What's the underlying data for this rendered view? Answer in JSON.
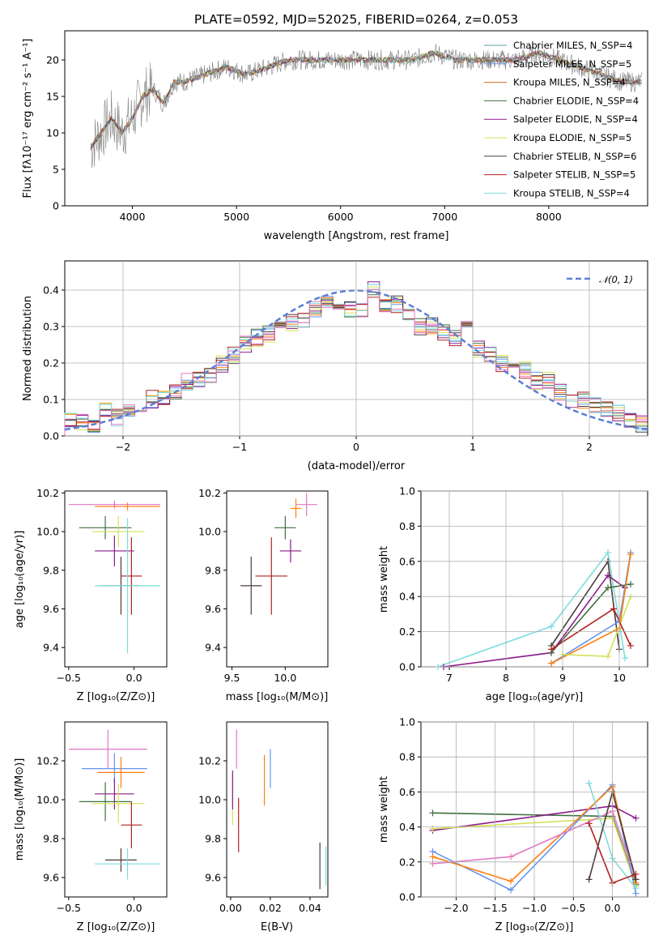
{
  "title": "PLATE=0592, MJD=52025, FIBERID=0264, z=0.053",
  "panels": {
    "spectrum": {
      "xlabel": "wavelength [Angstrom, rest frame]",
      "ylabel": "Flux [fλ10⁻¹⁷ erg cm⁻² s⁻¹ A⁻¹]",
      "xticks": [
        "4000",
        "5000",
        "6000",
        "7000",
        "8000"
      ],
      "yticks": [
        "0",
        "5",
        "10",
        "15",
        "20"
      ]
    },
    "residuals": {
      "xlabel": "(data-model)/error",
      "ylabel": "Normed distribution",
      "xticks": [
        "−2",
        "−1",
        "0",
        "1",
        "2"
      ],
      "yticks": [
        "0.0",
        "0.1",
        "0.2",
        "0.3",
        "0.4"
      ],
      "legend": "𝒩(0, 1)"
    },
    "age_Z": {
      "xlabel": "Z [log₁₀(Z/Z⊙)]",
      "ylabel": "age  [log₁₀(age/yr)]",
      "xticks": [
        "−0.5",
        "0.0"
      ],
      "yticks": [
        "9.4",
        "9.6",
        "9.8",
        "10.0",
        "10.2"
      ]
    },
    "age_mass": {
      "xlabel": "mass [log₁₀(M/M⊙)]",
      "xticks": [
        "9.5",
        "10.0"
      ],
      "yticks": [
        "9.4",
        "9.6",
        "9.8",
        "10.0",
        "10.2"
      ]
    },
    "mw_age": {
      "xlabel": "age  [log₁₀(age/yr)]",
      "ylabel": "mass weight",
      "xticks": [
        "7",
        "8",
        "9",
        "10"
      ],
      "yticks": [
        "0.0",
        "0.2",
        "0.4",
        "0.6",
        "0.8",
        "1.0"
      ]
    },
    "mass_Z": {
      "xlabel": "Z [log₁₀(Z/Z⊙)]",
      "ylabel": "mass [log₁₀(M/M⊙)]",
      "xticks": [
        "−0.5",
        "0.0"
      ],
      "yticks": [
        "9.6",
        "9.8",
        "10.0",
        "10.2"
      ]
    },
    "mass_EBV": {
      "xlabel": "E(B-V)",
      "xticks": [
        "0.00",
        "0.02",
        "0.04"
      ],
      "yticks": [
        "9.6",
        "9.8",
        "10.0",
        "10.2"
      ]
    },
    "mw_Z": {
      "xlabel": "Z [log₁₀(Z/Z⊙)]",
      "ylabel": "mass weight",
      "xticks": [
        "−2.0",
        "−1.5",
        "−1.0",
        "−0.5",
        "0.0"
      ],
      "yticks": [
        "0.0",
        "0.2",
        "0.4",
        "0.6",
        "0.8",
        "1.0"
      ]
    }
  },
  "chart_data": [
    {
      "type": "line",
      "title": "PLATE=0592, MJD=52025, FIBERID=0264, z=0.053",
      "xlabel": "wavelength [Angstrom, rest frame]",
      "ylabel": "Flux [fλ10⁻¹⁷ erg cm⁻² s⁻¹ A⁻¹]",
      "xlim": [
        3350,
        8950
      ],
      "ylim": [
        0,
        24
      ],
      "legend_position": "upper right",
      "data_spectrum": {
        "name": "data",
        "x": [
          3600,
          3700,
          3800,
          3900,
          4000,
          4100,
          4200,
          4300,
          4400,
          4500,
          4700,
          4900,
          5100,
          5300,
          5500,
          5700,
          5900,
          6100,
          6300,
          6500,
          6700,
          6900,
          7100,
          7300,
          7500,
          7700,
          7900,
          8100,
          8300,
          8500,
          8700,
          8900
        ],
        "y": [
          8,
          10,
          12,
          10,
          12,
          15,
          16,
          14,
          17,
          17,
          18,
          19,
          18,
          19,
          20,
          20,
          20,
          20,
          20,
          20,
          20,
          21,
          20,
          20,
          20,
          20,
          21,
          20,
          19,
          18,
          17,
          17
        ]
      },
      "series": [
        {
          "name": "Chabrier MILES, N_SSP=4",
          "color": "#5f9ea0"
        },
        {
          "name": "Salpeter MILES, N_SSP=5",
          "color": "#6495ed"
        },
        {
          "name": "Kroupa MILES, N_SSP=4",
          "color": "#d2691e"
        },
        {
          "name": "Chabrier ELODIE, N_SSP=4",
          "color": "#3f6f3f"
        },
        {
          "name": "Salpeter ELODIE, N_SSP=4",
          "color": "#8b1a8b"
        },
        {
          "name": "Kroupa ELODIE, N_SSP=5",
          "color": "#d4e157"
        },
        {
          "name": "Chabrier STELIB, N_SSP=6",
          "color": "#4a3b3b"
        },
        {
          "name": "Salpeter STELIB, N_SSP=5",
          "color": "#b22222"
        },
        {
          "name": "Kroupa STELIB, N_SSP=4",
          "color": "#7fdcdc"
        }
      ]
    },
    {
      "type": "line",
      "xlabel": "(data-model)/error",
      "ylabel": "Normed distribution",
      "xlim": [
        -2.5,
        2.5
      ],
      "ylim": [
        0,
        0.48
      ],
      "grid": true,
      "legend_position": "upper right",
      "gaussian": {
        "name": "𝒩(0, 1)",
        "mean": 0,
        "sigma": 1,
        "color": "#5b7fd6"
      },
      "histogram_bins": [
        -2.5,
        -2.4,
        -2.3,
        -2.2,
        -2.1,
        -2.0,
        -1.9,
        -1.8,
        -1.7,
        -1.6,
        -1.5,
        -1.4,
        -1.3,
        -1.2,
        -1.1,
        -1.0,
        -0.9,
        -0.8,
        -0.7,
        -0.6,
        -0.5,
        -0.4,
        -0.3,
        -0.2,
        -0.1,
        0.0,
        0.1,
        0.2,
        0.3,
        0.4,
        0.5,
        0.6,
        0.7,
        0.8,
        0.9,
        1.0,
        1.1,
        1.2,
        1.3,
        1.4,
        1.5,
        1.6,
        1.7,
        1.8,
        1.9,
        2.0,
        2.1,
        2.2,
        2.3,
        2.4,
        2.5
      ],
      "histogram_values": [
        0.04,
        0.035,
        0.03,
        0.07,
        0.05,
        0.06,
        0.08,
        0.1,
        0.1,
        0.12,
        0.15,
        0.16,
        0.17,
        0.2,
        0.22,
        0.25,
        0.27,
        0.28,
        0.3,
        0.31,
        0.32,
        0.35,
        0.37,
        0.36,
        0.35,
        0.34,
        0.4,
        0.35,
        0.36,
        0.34,
        0.3,
        0.3,
        0.28,
        0.27,
        0.3,
        0.24,
        0.22,
        0.2,
        0.2,
        0.18,
        0.15,
        0.15,
        0.12,
        0.1,
        0.1,
        0.08,
        0.07,
        0.06,
        0.04,
        0.03
      ]
    },
    {
      "type": "scatter",
      "xlabel": "Z [log₁₀(Z/Z⊙)]",
      "ylabel": "age  [log₁₀(age/yr)]",
      "xlim": [
        -0.53,
        0.25
      ],
      "ylim": [
        9.3,
        10.21
      ],
      "points": [
        {
          "x": -0.15,
          "xerr": 0.35,
          "y": 10.14,
          "yerr": 0.02,
          "color": "#e377c2"
        },
        {
          "x": -0.05,
          "xerr": 0.25,
          "y": 10.13,
          "yerr": 0.02,
          "color": "#ff7f0e"
        },
        {
          "x": -0.22,
          "xerr": 0.2,
          "y": 10.02,
          "yerr": 0.06,
          "color": "#3f6f3f"
        },
        {
          "x": -0.12,
          "xerr": 0.2,
          "y": 10.0,
          "yerr": 0.08,
          "color": "#d4e157"
        },
        {
          "x": -0.15,
          "xerr": 0.15,
          "y": 9.9,
          "yerr": 0.08,
          "color": "#8b1a8b"
        },
        {
          "x": -0.02,
          "xerr": 0.08,
          "y": 9.77,
          "yerr": 0.2,
          "color": "#b22222"
        },
        {
          "x": -0.1,
          "xerr": 0.15,
          "y": 9.72,
          "yerr": 0.15,
          "color": "#4a3b3b"
        },
        {
          "x": -0.05,
          "xerr": 0.25,
          "y": 9.72,
          "yerr": 0.35,
          "color": "#7fdcdc"
        }
      ]
    },
    {
      "type": "scatter",
      "xlabel": "mass [log₁₀(M/M⊙)]",
      "xlim": [
        9.45,
        10.4
      ],
      "ylim": [
        9.3,
        10.21
      ],
      "points": [
        {
          "x": 10.2,
          "xerr": 0.1,
          "y": 10.14,
          "yerr": 0.06,
          "color": "#e377c2"
        },
        {
          "x": 10.1,
          "xerr": 0.05,
          "y": 10.12,
          "yerr": 0.05,
          "color": "#ff7f0e"
        },
        {
          "x": 10.0,
          "xerr": 0.1,
          "y": 10.02,
          "yerr": 0.06,
          "color": "#3f6f3f"
        },
        {
          "x": 10.05,
          "xerr": 0.1,
          "y": 9.9,
          "yerr": 0.06,
          "color": "#8b1a8b"
        },
        {
          "x": 9.87,
          "xerr": 0.15,
          "y": 9.77,
          "yerr": 0.2,
          "color": "#b22222"
        },
        {
          "x": 9.68,
          "xerr": 0.1,
          "y": 9.72,
          "yerr": 0.15,
          "color": "#4a3b3b"
        }
      ]
    },
    {
      "type": "line",
      "xlabel": "age  [log₁₀(age/yr)]",
      "ylabel": "mass weight",
      "xlim": [
        6.5,
        10.5
      ],
      "ylim": [
        0,
        1
      ],
      "grid": true,
      "series": [
        {
          "color": "#7fdcdc",
          "x": [
            6.8,
            8.8,
            9.8,
            10.1
          ],
          "y": [
            0.0,
            0.23,
            0.65,
            0.05
          ]
        },
        {
          "color": "#8b1a8b",
          "x": [
            6.9,
            8.8,
            9.8,
            10.1
          ],
          "y": [
            0.0,
            0.08,
            0.52,
            0.45
          ]
        },
        {
          "color": "#4a3b3b",
          "x": [
            8.8,
            9.8,
            10.0
          ],
          "y": [
            0.12,
            0.6,
            0.1
          ]
        },
        {
          "color": "#3f6f3f",
          "x": [
            8.8,
            9.8,
            10.2
          ],
          "y": [
            0.08,
            0.45,
            0.47
          ]
        },
        {
          "color": "#6495ed",
          "x": [
            8.8,
            10.0,
            10.2
          ],
          "y": [
            0.02,
            0.26,
            0.65
          ]
        },
        {
          "color": "#ff7f0e",
          "x": [
            8.8,
            10.0,
            10.2
          ],
          "y": [
            0.02,
            0.22,
            0.64
          ]
        },
        {
          "color": "#d4e157",
          "x": [
            9.0,
            9.8,
            10.2
          ],
          "y": [
            0.07,
            0.06,
            0.4
          ]
        },
        {
          "color": "#b22222",
          "x": [
            8.8,
            9.9,
            10.2
          ],
          "y": [
            0.1,
            0.33,
            0.12
          ]
        }
      ]
    },
    {
      "type": "scatter",
      "xlabel": "Z [log₁₀(Z/Z⊙)]",
      "ylabel": "mass [log₁₀(M/M⊙)]",
      "xlim": [
        -0.53,
        0.25
      ],
      "ylim": [
        9.5,
        10.4
      ],
      "points": [
        {
          "x": -0.2,
          "xerr": 0.3,
          "y": 10.26,
          "yerr": 0.1,
          "color": "#e377c2"
        },
        {
          "x": -0.15,
          "xerr": 0.25,
          "y": 10.16,
          "yerr": 0.08,
          "color": "#6495ed"
        },
        {
          "x": -0.1,
          "xerr": 0.18,
          "y": 10.14,
          "yerr": 0.08,
          "color": "#ff7f0e"
        },
        {
          "x": -0.15,
          "xerr": 0.15,
          "y": 10.03,
          "yerr": 0.08,
          "color": "#8b1a8b"
        },
        {
          "x": -0.22,
          "xerr": 0.2,
          "y": 9.99,
          "yerr": 0.1,
          "color": "#3f6f3f"
        },
        {
          "x": -0.12,
          "xerr": 0.2,
          "y": 9.98,
          "yerr": 0.1,
          "color": "#d4e157"
        },
        {
          "x": -0.02,
          "xerr": 0.08,
          "y": 9.87,
          "yerr": 0.12,
          "color": "#b22222"
        },
        {
          "x": -0.1,
          "xerr": 0.12,
          "y": 9.69,
          "yerr": 0.06,
          "color": "#4a3b3b"
        },
        {
          "x": -0.05,
          "xerr": 0.25,
          "y": 9.67,
          "yerr": 0.08,
          "color": "#7fdcdc"
        }
      ]
    },
    {
      "type": "scatter",
      "xlabel": "E(B-V)",
      "xlim": [
        -0.002,
        0.049
      ],
      "ylim": [
        9.5,
        10.4
      ],
      "points": [
        {
          "x": 0.001,
          "y": 10.0,
          "yerr": 0.13,
          "color": "#d4e157"
        },
        {
          "x": 0.001,
          "y": 10.05,
          "yerr": 0.1,
          "color": "#8b1a8b"
        },
        {
          "x": 0.003,
          "y": 10.26,
          "yerr": 0.1,
          "color": "#e377c2"
        },
        {
          "x": 0.004,
          "y": 9.87,
          "yerr": 0.14,
          "color": "#b22222"
        },
        {
          "x": 0.017,
          "y": 10.1,
          "yerr": 0.13,
          "color": "#ff7f0e"
        },
        {
          "x": 0.02,
          "y": 10.16,
          "yerr": 0.1,
          "color": "#6495ed"
        },
        {
          "x": 0.045,
          "y": 9.66,
          "yerr": 0.12,
          "color": "#4a3b3b"
        },
        {
          "x": 0.048,
          "y": 9.66,
          "yerr": 0.1,
          "color": "#7fdcdc"
        }
      ]
    },
    {
      "type": "line",
      "xlabel": "Z [log₁₀(Z/Z⊙)]",
      "ylabel": "mass weight",
      "xlim": [
        -2.45,
        0.45
      ],
      "ylim": [
        0,
        1
      ],
      "grid": true,
      "series": [
        {
          "color": "#3f6f3f",
          "x": [
            -2.3,
            0.0,
            0.3
          ],
          "y": [
            0.48,
            0.46,
            0.07
          ]
        },
        {
          "color": "#8b1a8b",
          "x": [
            -2.3,
            0.0,
            0.3
          ],
          "y": [
            0.38,
            0.52,
            0.45
          ]
        },
        {
          "color": "#d4e157",
          "x": [
            -2.3,
            0.0,
            0.3
          ],
          "y": [
            0.39,
            0.45,
            0.06
          ]
        },
        {
          "color": "#6495ed",
          "x": [
            -2.3,
            -1.3,
            0.0,
            0.3
          ],
          "y": [
            0.26,
            0.04,
            0.64,
            0.02
          ]
        },
        {
          "color": "#ff7f0e",
          "x": [
            -2.3,
            -1.3,
            0.0,
            0.3
          ],
          "y": [
            0.23,
            0.09,
            0.63,
            0.08
          ]
        },
        {
          "color": "#e377c2",
          "x": [
            -2.3,
            -1.3,
            0.0,
            0.3
          ],
          "y": [
            0.19,
            0.23,
            0.49,
            0.1
          ]
        },
        {
          "color": "#7fdcdc",
          "x": [
            -0.3,
            0.0,
            0.3
          ],
          "y": [
            0.65,
            0.22,
            0.05
          ]
        },
        {
          "color": "#4a3b3b",
          "x": [
            -0.3,
            0.0,
            0.3
          ],
          "y": [
            0.1,
            0.6,
            0.1
          ]
        },
        {
          "color": "#b22222",
          "x": [
            -0.3,
            0.0,
            0.3
          ],
          "y": [
            0.42,
            0.08,
            0.13
          ]
        }
      ]
    }
  ]
}
